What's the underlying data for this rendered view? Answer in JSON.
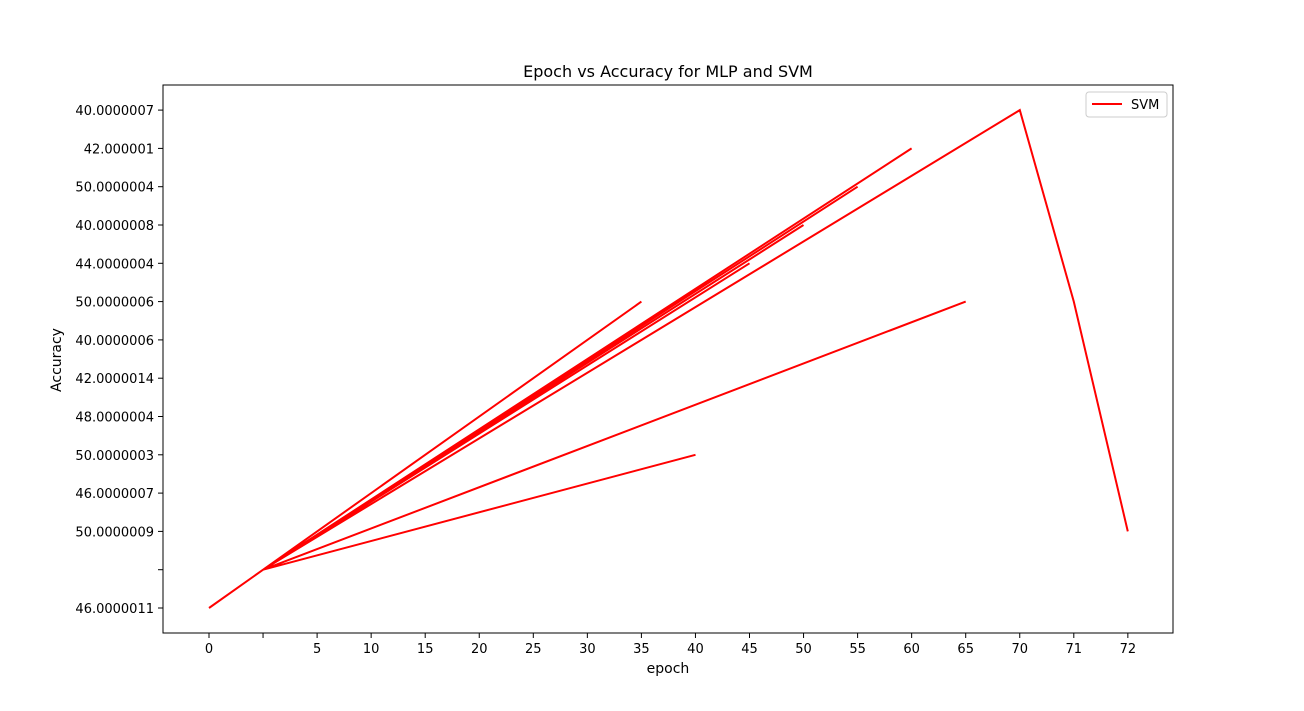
{
  "chart_data": {
    "type": "line",
    "title": "Epoch vs Accuracy for MLP and SVM",
    "xlabel": "epoch",
    "ylabel": "Accuracy",
    "grid": false,
    "legend_position": "top-right",
    "x_categories": [
      "0",
      "",
      "5",
      "10",
      "15",
      "20",
      "25",
      "30",
      "35",
      "40",
      "45",
      "50",
      "55",
      "60",
      "65",
      "70",
      "71",
      "72"
    ],
    "y_categories": [
      "46.0000011",
      "",
      "50.0000009",
      "46.0000007",
      "50.0000003",
      "48.0000004",
      "42.0000014",
      "40.0000006",
      "50.0000006",
      "44.0000004",
      "40.0000008",
      "50.0000004",
      "42.000001",
      "40.0000007"
    ],
    "series": [
      {
        "name": "SVM",
        "color": "#ff0000",
        "points": [
          [
            "0",
            "46.0000011"
          ],
          [
            "",
            ""
          ],
          [
            "35",
            "50.0000006"
          ],
          [
            "",
            ""
          ],
          [
            "45",
            "44.0000004"
          ],
          [
            "",
            ""
          ],
          [
            "50",
            "40.0000008"
          ],
          [
            "",
            ""
          ],
          [
            "55",
            "50.0000004"
          ],
          [
            "",
            ""
          ],
          [
            "60",
            "42.000001"
          ],
          [
            "",
            ""
          ],
          [
            "40",
            "50.0000003"
          ],
          [
            "",
            ""
          ],
          [
            "65",
            "50.0000006"
          ],
          [
            "",
            ""
          ],
          [
            "70",
            "40.0000007"
          ],
          [
            "71",
            "50.0000006"
          ],
          [
            "72",
            "50.0000009"
          ]
        ]
      }
    ]
  }
}
